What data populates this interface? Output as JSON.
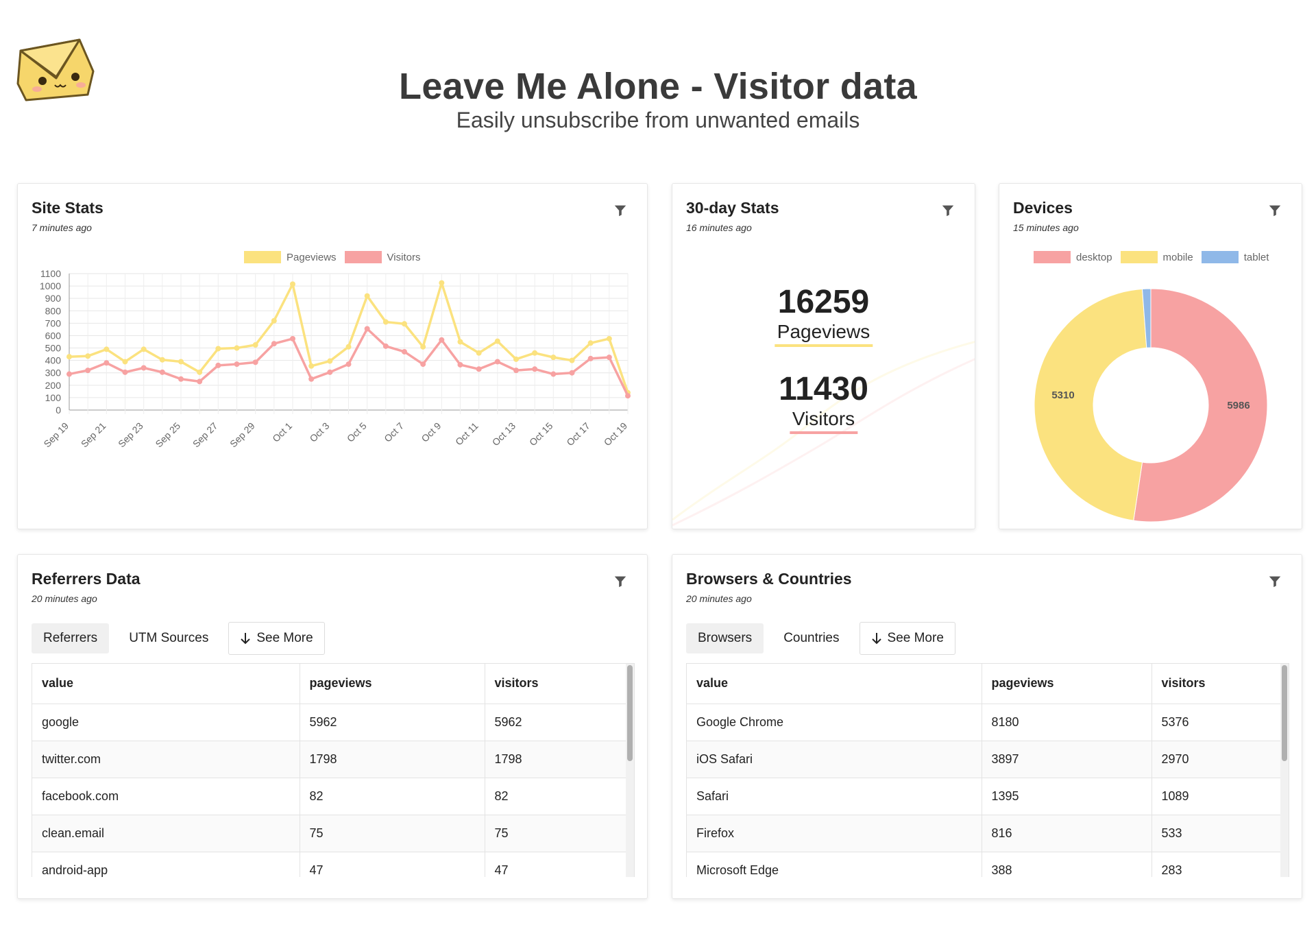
{
  "header": {
    "title": "Leave Me Alone - Visitor data",
    "subtitle": "Easily unsubscribe from unwanted emails",
    "logo_icon": "envelope-face-icon"
  },
  "colors": {
    "pageviews": "#fbe27f",
    "visitors": "#f7a2a2",
    "desktop": "#f7a2a2",
    "mobile": "#fbe27f",
    "tablet": "#8fb8e8"
  },
  "site_stats": {
    "title": "Site Stats",
    "time": "7 minutes ago",
    "legend": [
      "Pageviews",
      "Visitors"
    ]
  },
  "thirty_day": {
    "title": "30-day Stats",
    "time": "16 minutes ago",
    "pageviews_value": "16259",
    "pageviews_label": "Pageviews",
    "visitors_value": "11430",
    "visitors_label": "Visitors"
  },
  "devices": {
    "title": "Devices",
    "time": "15 minutes ago",
    "legend": [
      "desktop",
      "mobile",
      "tablet"
    ],
    "desktop_label": "5986",
    "mobile_label": "5310"
  },
  "referrers": {
    "title": "Referrers Data",
    "time": "20 minutes ago",
    "tabs": [
      "Referrers",
      "UTM Sources"
    ],
    "see_more": "See More",
    "columns": [
      "value",
      "pageviews",
      "visitors"
    ],
    "rows": [
      [
        "google",
        "5962",
        "5962"
      ],
      [
        "twitter.com",
        "1798",
        "1798"
      ],
      [
        "facebook.com",
        "82",
        "82"
      ],
      [
        "clean.email",
        "75",
        "75"
      ],
      [
        "android-app",
        "47",
        "47"
      ]
    ]
  },
  "browsers": {
    "title": "Browsers & Countries",
    "time": "20 minutes ago",
    "tabs": [
      "Browsers",
      "Countries"
    ],
    "see_more": "See More",
    "columns": [
      "value",
      "pageviews",
      "visitors"
    ],
    "rows": [
      [
        "Google Chrome",
        "8180",
        "5376"
      ],
      [
        "iOS Safari",
        "3897",
        "2970"
      ],
      [
        "Safari",
        "1395",
        "1089"
      ],
      [
        "Firefox",
        "816",
        "533"
      ],
      [
        "Microsoft Edge",
        "388",
        "283"
      ]
    ]
  },
  "chart_data": [
    {
      "type": "line",
      "title": "Site Stats",
      "categories": [
        "Sep 19",
        "Sep 20",
        "Sep 21",
        "Sep 22",
        "Sep 23",
        "Sep 24",
        "Sep 25",
        "Sep 26",
        "Sep 27",
        "Sep 28",
        "Sep 29",
        "Sep 30",
        "Oct 1",
        "Oct 2",
        "Oct 3",
        "Oct 4",
        "Oct 5",
        "Oct 6",
        "Oct 7",
        "Oct 8",
        "Oct 9",
        "Oct 10",
        "Oct 11",
        "Oct 12",
        "Oct 13",
        "Oct 14",
        "Oct 15",
        "Oct 16",
        "Oct 17",
        "Oct 18",
        "Oct 19"
      ],
      "tick_labels": [
        "Sep 19",
        "Sep 21",
        "Sep 23",
        "Sep 25",
        "Sep 27",
        "Sep 29",
        "Oct 1",
        "Oct 3",
        "Oct 5",
        "Oct 7",
        "Oct 9",
        "Oct 11",
        "Oct 13",
        "Oct 15",
        "Oct 17",
        "Oct 19"
      ],
      "series": [
        {
          "name": "Pageviews",
          "values": [
            430,
            435,
            490,
            390,
            490,
            405,
            390,
            305,
            495,
            500,
            525,
            720,
            1015,
            355,
            395,
            510,
            920,
            710,
            695,
            510,
            1025,
            550,
            460,
            555,
            410,
            460,
            425,
            400,
            540,
            575,
            140
          ]
        },
        {
          "name": "Visitors",
          "values": [
            290,
            320,
            380,
            305,
            340,
            305,
            250,
            230,
            360,
            370,
            385,
            535,
            575,
            250,
            305,
            370,
            655,
            515,
            470,
            370,
            565,
            365,
            330,
            390,
            320,
            330,
            290,
            300,
            415,
            425,
            115
          ]
        }
      ],
      "ylim": [
        0,
        1100
      ],
      "yticks": [
        0,
        100,
        200,
        300,
        400,
        500,
        600,
        700,
        800,
        900,
        1000,
        1100
      ],
      "grid": true,
      "legend": "top-center"
    },
    {
      "type": "pie",
      "title": "Devices",
      "categories": [
        "desktop",
        "mobile",
        "tablet"
      ],
      "values": [
        5986,
        5310,
        134
      ],
      "legend": "top-center"
    }
  ]
}
